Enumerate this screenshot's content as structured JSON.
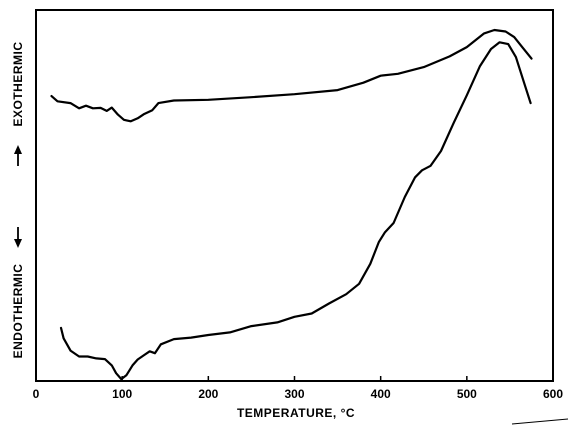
{
  "chart_data": {
    "type": "line",
    "xlabel": "TEMPERATURE, °C",
    "ylabel_top": "EXOTHERMIC",
    "ylabel_bottom": "ENDOTHERMIC",
    "xlim": [
      0,
      600
    ],
    "ylim": [
      0,
      100
    ],
    "grid": false,
    "x_ticks": [
      0,
      100,
      200,
      300,
      400,
      500,
      600
    ],
    "x_tick_labels": [
      "0",
      "100",
      "200",
      "300",
      "400",
      "500",
      "600"
    ],
    "series": [
      {
        "points": [
          [
            18,
            76.8
          ],
          [
            25,
            75.4
          ],
          [
            40,
            74.9
          ],
          [
            50,
            73.5
          ],
          [
            58,
            74.2
          ],
          [
            66,
            73.5
          ],
          [
            75,
            73.6
          ],
          [
            82,
            72.8
          ],
          [
            88,
            73.7
          ],
          [
            95,
            71.8
          ],
          [
            102,
            70.4
          ],
          [
            110,
            70.0
          ],
          [
            118,
            70.8
          ],
          [
            125,
            71.9
          ],
          [
            135,
            73.0
          ],
          [
            142,
            74.9
          ],
          [
            160,
            75.6
          ],
          [
            200,
            75.8
          ],
          [
            250,
            76.5
          ],
          [
            300,
            77.3
          ],
          [
            350,
            78.4
          ],
          [
            380,
            80.4
          ],
          [
            400,
            82.3
          ],
          [
            420,
            82.8
          ],
          [
            450,
            84.6
          ],
          [
            480,
            87.5
          ],
          [
            500,
            90.0
          ],
          [
            520,
            93.7
          ],
          [
            532,
            94.6
          ],
          [
            545,
            94.2
          ],
          [
            555,
            92.7
          ],
          [
            565,
            89.8
          ],
          [
            575,
            86.9
          ]
        ]
      },
      {
        "points": [
          [
            29,
            14.3
          ],
          [
            32,
            11.5
          ],
          [
            40,
            8.2
          ],
          [
            50,
            6.6
          ],
          [
            60,
            6.6
          ],
          [
            70,
            6.1
          ],
          [
            80,
            5.9
          ],
          [
            88,
            4.2
          ],
          [
            93,
            2.1
          ],
          [
            99,
            0.5
          ],
          [
            105,
            1.6
          ],
          [
            112,
            4.2
          ],
          [
            118,
            5.8
          ],
          [
            125,
            6.9
          ],
          [
            132,
            8.0
          ],
          [
            138,
            7.5
          ],
          [
            145,
            9.9
          ],
          [
            160,
            11.3
          ],
          [
            180,
            11.7
          ],
          [
            200,
            12.4
          ],
          [
            225,
            13.1
          ],
          [
            250,
            14.8
          ],
          [
            280,
            15.8
          ],
          [
            300,
            17.3
          ],
          [
            320,
            18.2
          ],
          [
            340,
            20.9
          ],
          [
            360,
            23.4
          ],
          [
            375,
            26.2
          ],
          [
            388,
            31.6
          ],
          [
            398,
            37.5
          ],
          [
            405,
            40.1
          ],
          [
            415,
            42.6
          ],
          [
            428,
            49.6
          ],
          [
            440,
            54.9
          ],
          [
            448,
            56.8
          ],
          [
            458,
            58.0
          ],
          [
            470,
            62.0
          ],
          [
            485,
            69.7
          ],
          [
            500,
            77.0
          ],
          [
            515,
            84.8
          ],
          [
            528,
            89.5
          ],
          [
            538,
            91.3
          ],
          [
            548,
            90.8
          ],
          [
            557,
            87.3
          ],
          [
            566,
            80.7
          ],
          [
            574,
            74.9
          ]
        ]
      }
    ]
  }
}
